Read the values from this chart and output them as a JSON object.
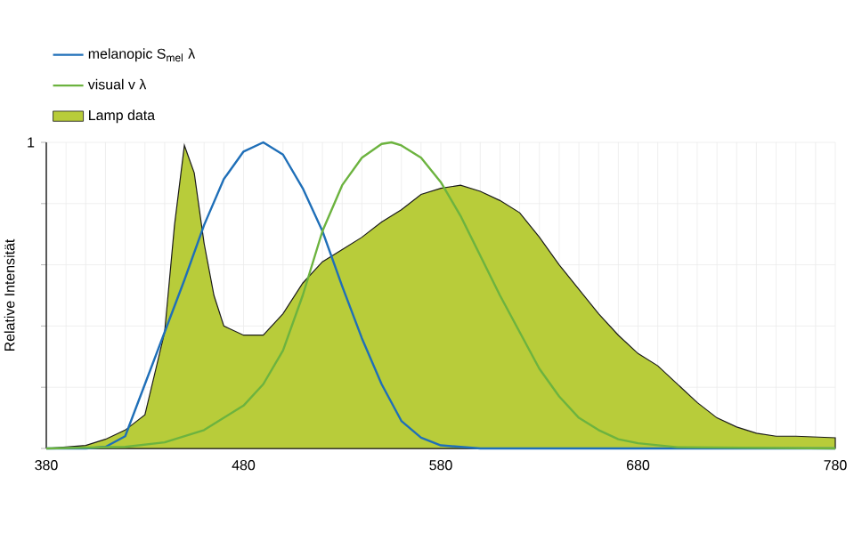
{
  "chart_data": {
    "type": "area",
    "ylabel": "Relative Intensität",
    "legend": "top left",
    "grid": true,
    "xlim": [
      380,
      780
    ],
    "ylim": [
      0,
      1
    ],
    "xticks": [
      380,
      {
        "value": 390,
        "label": null
      },
      {
        "value": 400,
        "label": null
      },
      {
        "value": 410,
        "label": null
      },
      {
        "value": 420,
        "label": null
      },
      {
        "value": 430,
        "label": null
      },
      {
        "value": 440,
        "label": null
      },
      {
        "value": 450,
        "label": null
      },
      {
        "value": 460,
        "label": null
      },
      {
        "value": 470,
        "label": null
      },
      480,
      {
        "value": 490,
        "label": null
      },
      {
        "value": 500,
        "label": null
      },
      {
        "value": 510,
        "label": null
      },
      {
        "value": 520,
        "label": null
      },
      {
        "value": 530,
        "label": null
      },
      {
        "value": 540,
        "label": null
      },
      {
        "value": 550,
        "label": null
      },
      {
        "value": 560,
        "label": null
      },
      {
        "value": 570,
        "label": null
      },
      580,
      {
        "value": 590,
        "label": null
      },
      {
        "value": 600,
        "label": null
      },
      {
        "value": 610,
        "label": null
      },
      {
        "value": 620,
        "label": null
      },
      {
        "value": 630,
        "label": null
      },
      {
        "value": 640,
        "label": null
      },
      {
        "value": 650,
        "label": null
      },
      {
        "value": 660,
        "label": null
      },
      {
        "value": 670,
        "label": null
      },
      680,
      {
        "value": 690,
        "label": null
      },
      {
        "value": 700,
        "label": null
      },
      {
        "value": 710,
        "label": null
      },
      {
        "value": 720,
        "label": null
      },
      {
        "value": 730,
        "label": null
      },
      {
        "value": 740,
        "label": null
      },
      {
        "value": 750,
        "label": null
      },
      {
        "value": 760,
        "label": null
      },
      {
        "value": 770,
        "label": null
      },
      780
    ],
    "yticks": [
      {
        "value": 0,
        "label": null
      },
      {
        "value": 0.2,
        "label": null
      },
      {
        "value": 0.4,
        "label": null
      },
      {
        "value": 0.6,
        "label": null
      },
      {
        "value": 0.8,
        "label": null
      },
      1
    ],
    "series": [
      {
        "name": "Lamp data",
        "type": "area",
        "color": "#1a1a1a",
        "x": [
          380,
          390,
          400,
          410,
          420,
          430,
          440,
          445,
          450,
          455,
          460,
          465,
          470,
          480,
          490,
          500,
          510,
          520,
          530,
          540,
          550,
          560,
          570,
          580,
          590,
          600,
          610,
          620,
          630,
          640,
          650,
          660,
          670,
          680,
          690,
          700,
          710,
          720,
          730,
          740,
          750,
          760,
          780
        ],
        "values": [
          0.0,
          0.005,
          0.01,
          0.03,
          0.06,
          0.11,
          0.38,
          0.73,
          0.99,
          0.9,
          0.67,
          0.5,
          0.4,
          0.37,
          0.37,
          0.44,
          0.54,
          0.61,
          0.65,
          0.69,
          0.74,
          0.78,
          0.83,
          0.85,
          0.86,
          0.84,
          0.81,
          0.77,
          0.69,
          0.6,
          0.52,
          0.44,
          0.37,
          0.31,
          0.27,
          0.21,
          0.15,
          0.1,
          0.07,
          0.05,
          0.04,
          0.04,
          0.035
        ]
      },
      {
        "name": "melanopic  S$_{mel}$ λ",
        "type": "line",
        "color": "#1f6fb8",
        "x": [
          380,
          400,
          410,
          420,
          430,
          440,
          450,
          460,
          470,
          480,
          490,
          500,
          510,
          520,
          530,
          540,
          550,
          560,
          570,
          580,
          600,
          780
        ],
        "values": [
          0.0,
          0.0,
          0.005,
          0.04,
          0.21,
          0.38,
          0.55,
          0.73,
          0.88,
          0.97,
          1.0,
          0.96,
          0.85,
          0.71,
          0.53,
          0.36,
          0.21,
          0.09,
          0.035,
          0.01,
          0.0,
          0.0
        ]
      },
      {
        "name": "visual v λ",
        "type": "line",
        "color": "#6cb33f",
        "x": [
          380,
          420,
          440,
          460,
          480,
          490,
          500,
          510,
          520,
          530,
          540,
          550,
          555,
          560,
          570,
          580,
          590,
          600,
          610,
          620,
          630,
          640,
          650,
          660,
          670,
          680,
          700,
          780
        ],
        "values": [
          0.0,
          0.005,
          0.02,
          0.06,
          0.14,
          0.21,
          0.32,
          0.5,
          0.71,
          0.86,
          0.95,
          0.995,
          1.0,
          0.99,
          0.95,
          0.87,
          0.76,
          0.63,
          0.5,
          0.38,
          0.26,
          0.17,
          0.1,
          0.06,
          0.03,
          0.017,
          0.004,
          0.0
        ]
      }
    ]
  }
}
